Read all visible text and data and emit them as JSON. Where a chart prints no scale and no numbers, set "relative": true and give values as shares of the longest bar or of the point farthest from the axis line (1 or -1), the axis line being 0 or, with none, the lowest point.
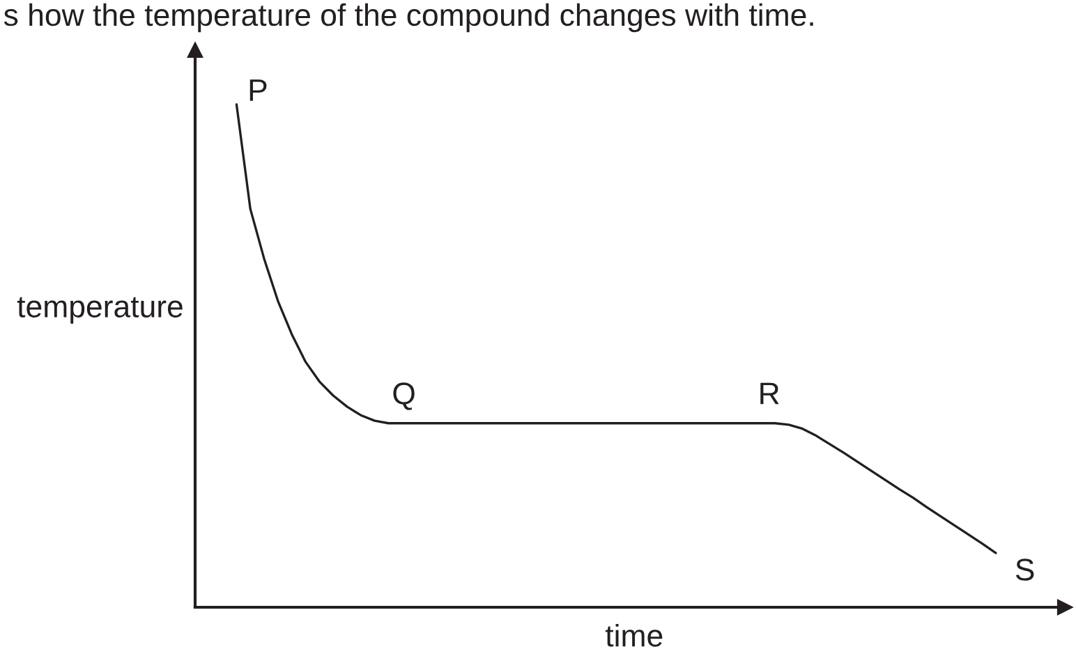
{
  "chart_data": {
    "type": "line",
    "title": "s how the temperature of the compound changes with time.",
    "xlabel": "time",
    "ylabel": "temperature",
    "relative": true,
    "color": "#231f20",
    "categories": [
      null,
      null,
      null,
      null,
      null,
      null,
      null,
      null,
      null,
      null,
      null,
      null,
      null,
      null,
      null,
      null,
      null,
      null,
      null,
      null,
      null,
      null,
      null,
      null,
      null,
      null,
      null,
      null,
      null,
      null,
      null,
      null,
      null,
      null,
      null,
      null,
      null,
      null,
      null,
      null,
      null,
      null,
      null,
      null,
      null,
      null,
      null,
      null,
      null,
      null,
      null,
      null,
      null,
      null,
      null,
      null,
      null,
      null,
      null,
      null,
      null,
      null,
      null,
      null
    ],
    "values": [
      null,
      null,
      null,
      1,
      0.792,
      0.693,
      0.609,
      0.543,
      0.488,
      0.449,
      0.421,
      0.399,
      0.382,
      0.371,
      0.366,
      0.366,
      0.366,
      0.366,
      0.366,
      0.366,
      0.366,
      0.366,
      0.366,
      0.366,
      0.366,
      0.366,
      0.366,
      0.366,
      0.366,
      0.366,
      0.366,
      0.366,
      0.366,
      0.366,
      0.366,
      0.366,
      0.366,
      0.366,
      0.366,
      0.366,
      0.366,
      0.366,
      0.366,
      0.363,
      0.355,
      0.341,
      0.324,
      0.307,
      0.289,
      0.271,
      0.253,
      0.235,
      0.218,
      0.199,
      0.181,
      0.163,
      0.145,
      0.127,
      0.108,
      null,
      null,
      null,
      null,
      null
    ],
    "annotations": [
      "P",
      {
        "text": "Q",
        "y": 0.366
      },
      {
        "text": "R",
        "y": 0.366
      },
      "S"
    ]
  }
}
